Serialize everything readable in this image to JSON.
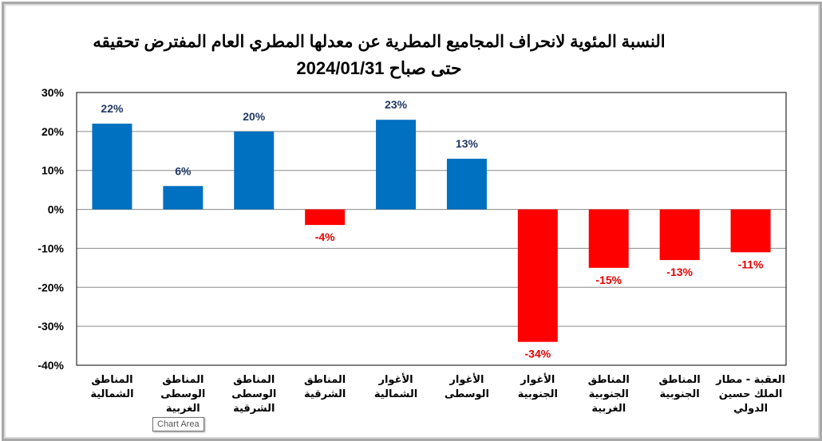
{
  "chart_data": {
    "type": "bar",
    "title": "النسبة المئوية لانحراف المجاميع المطرية عن معدلها المطري العام المفترض تحقيقه",
    "subtitle": "حتى صباح 2024/01/31",
    "categories": [
      "المناطق الشمالية",
      "المناطق الوسطى الغربية",
      "المناطق الوسطى الشرقية",
      "المناطق الشرقية",
      "الأغوار الشمالية",
      "الأغوار الوسطى",
      "الأغوار الجنوبية",
      "المناطق الجنوبية الغربية",
      "المناطق الجنوبية",
      "العقبة - مطار الملك حسين الدولي"
    ],
    "category_lines": [
      [
        "المناطق",
        "الشمالية"
      ],
      [
        "المناطق",
        "الوسطى",
        "الغربية"
      ],
      [
        "المناطق",
        "الوسطى",
        "الشرقية"
      ],
      [
        "المناطق",
        "الشرقية"
      ],
      [
        "الأغوار",
        "الشمالية"
      ],
      [
        "الأغوار",
        "الوسطى"
      ],
      [
        "الأغوار",
        "الجنوبية"
      ],
      [
        "المناطق",
        "الجنوبية",
        "الغربية"
      ],
      [
        "المناطق",
        "الجنوبية"
      ],
      [
        "العقبة - مطار",
        "الملك حسين",
        "الدولي"
      ]
    ],
    "values": [
      22,
      6,
      20,
      -4,
      23,
      13,
      -34,
      -15,
      -13,
      -11
    ],
    "data_labels": [
      "22%",
      "6%",
      "20%",
      "-4%",
      "23%",
      "13%",
      "-34%",
      "-15%",
      "-13%",
      "-11%"
    ],
    "yticks": [
      "30%",
      "20%",
      "10%",
      "0%",
      "-10%",
      "-20%",
      "-30%",
      "-40%"
    ],
    "ylim": [
      -40,
      30
    ],
    "xlabel": "",
    "ylabel": "",
    "grid": true,
    "colors": {
      "positive": "#0070c0",
      "negative": "#ff0000",
      "positive_label": "#1f3864",
      "negative_label": "#e00000"
    }
  },
  "tooltip": "Chart Area"
}
